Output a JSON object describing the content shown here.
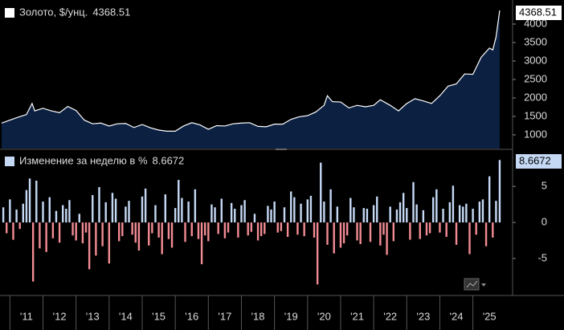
{
  "chart_data": [
    {
      "type": "area",
      "series": [
        {
          "name": "Золото, $/унц.",
          "color": "#ffffff",
          "fill": "#0c2142",
          "x": [
            2010.75,
            2011,
            2011.25,
            2011.5,
            2011.67,
            2011.75,
            2012,
            2012.25,
            2012.5,
            2012.75,
            2013,
            2013.25,
            2013.5,
            2013.75,
            2014,
            2014.25,
            2014.5,
            2014.75,
            2015,
            2015.25,
            2015.5,
            2015.75,
            2016,
            2016.25,
            2016.5,
            2016.75,
            2017,
            2017.25,
            2017.5,
            2017.75,
            2018,
            2018.25,
            2018.5,
            2018.75,
            2019,
            2019.25,
            2019.5,
            2019.75,
            2020,
            2020.25,
            2020.5,
            2020.6,
            2020.75,
            2021,
            2021.25,
            2021.5,
            2021.75,
            2022,
            2022.2,
            2022.5,
            2022.75,
            2023,
            2023.25,
            2023.5,
            2023.75,
            2024,
            2024.25,
            2024.5,
            2024.75,
            2025,
            2025.25,
            2025.5,
            2025.6,
            2025.7,
            2025.81
          ],
          "values": [
            1320,
            1400,
            1480,
            1550,
            1850,
            1650,
            1720,
            1650,
            1600,
            1770,
            1660,
            1400,
            1300,
            1320,
            1240,
            1300,
            1310,
            1200,
            1280,
            1190,
            1130,
            1100,
            1100,
            1240,
            1330,
            1270,
            1150,
            1250,
            1240,
            1300,
            1320,
            1330,
            1230,
            1220,
            1290,
            1290,
            1420,
            1490,
            1520,
            1620,
            1800,
            2060,
            1900,
            1890,
            1730,
            1800,
            1760,
            1800,
            1950,
            1800,
            1650,
            1850,
            1980,
            1920,
            1850,
            2060,
            2320,
            2380,
            2650,
            2640,
            3100,
            3350,
            3300,
            3650,
            4368.51
          ]
        }
      ],
      "xlim": [
        2010.7,
        2026.2
      ],
      "ylim": [
        630,
        4543
      ],
      "yticks": [
        1000,
        1500,
        2000,
        2500,
        3000,
        3500,
        4000
      ]
    },
    {
      "type": "bar",
      "series": [
        {
          "name": "Изменение за неделю в %",
          "color_pos": "#c5d9f5",
          "color_neg": "#f28b93",
          "x": [
            2010.8,
            2010.9,
            2011.0,
            2011.1,
            2011.2,
            2011.3,
            2011.4,
            2011.5,
            2011.6,
            2011.7,
            2011.8,
            2011.9,
            2012.0,
            2012.1,
            2012.2,
            2012.3,
            2012.4,
            2012.5,
            2012.6,
            2012.7,
            2012.8,
            2012.9,
            2013.0,
            2013.1,
            2013.2,
            2013.3,
            2013.4,
            2013.5,
            2013.6,
            2013.7,
            2013.8,
            2013.9,
            2014.0,
            2014.1,
            2014.2,
            2014.3,
            2014.4,
            2014.5,
            2014.6,
            2014.7,
            2014.8,
            2014.9,
            2015.0,
            2015.1,
            2015.2,
            2015.3,
            2015.4,
            2015.5,
            2015.6,
            2015.7,
            2015.8,
            2015.9,
            2016.0,
            2016.1,
            2016.2,
            2016.3,
            2016.4,
            2016.5,
            2016.6,
            2016.7,
            2016.8,
            2016.9,
            2017.0,
            2017.1,
            2017.2,
            2017.3,
            2017.4,
            2017.5,
            2017.6,
            2017.7,
            2017.8,
            2017.9,
            2018.0,
            2018.1,
            2018.2,
            2018.3,
            2018.4,
            2018.5,
            2018.6,
            2018.7,
            2018.8,
            2018.9,
            2019.0,
            2019.1,
            2019.2,
            2019.3,
            2019.4,
            2019.5,
            2019.6,
            2019.7,
            2019.8,
            2019.9,
            2020.0,
            2020.1,
            2020.2,
            2020.3,
            2020.4,
            2020.5,
            2020.6,
            2020.7,
            2020.8,
            2020.9,
            2021.0,
            2021.1,
            2021.2,
            2021.3,
            2021.4,
            2021.5,
            2021.6,
            2021.7,
            2021.8,
            2021.9,
            2022.0,
            2022.1,
            2022.2,
            2022.3,
            2022.4,
            2022.5,
            2022.6,
            2022.7,
            2022.8,
            2022.9,
            2023.0,
            2023.1,
            2023.2,
            2023.3,
            2023.4,
            2023.5,
            2023.6,
            2023.7,
            2023.8,
            2023.9,
            2024.0,
            2024.1,
            2024.2,
            2024.3,
            2024.4,
            2024.5,
            2024.6,
            2024.7,
            2024.8,
            2024.9,
            2025.0,
            2025.1,
            2025.2,
            2025.3,
            2025.4,
            2025.5,
            2025.6,
            2025.7,
            2025.81
          ],
          "values": [
            2.1,
            -1.5,
            3.2,
            -2.4,
            1.8,
            -0.9,
            2.6,
            4.5,
            6.1,
            -8.2,
            5.8,
            -3.6,
            2.9,
            -4.1,
            3.5,
            -2.2,
            1.6,
            -2.8,
            2.4,
            1.9,
            3.1,
            -1.8,
            -2.5,
            1.2,
            -2.9,
            -1.4,
            -6.5,
            3.8,
            -4.6,
            4.9,
            -3.3,
            2.8,
            -5.7,
            4.1,
            3.3,
            -2.6,
            -1.9,
            2.2,
            3.0,
            -1.7,
            -2.8,
            -3.9,
            3.6,
            4.7,
            -3.2,
            -1.5,
            2.4,
            -2.1,
            -4.4,
            3.9,
            -2.3,
            -3.5,
            2.0,
            5.9,
            3.4,
            -2.7,
            2.9,
            -1.9,
            4.6,
            -2.3,
            -5.8,
            -1.8,
            -2.6,
            2.5,
            2.1,
            -1.6,
            3.3,
            -2.2,
            -1.4,
            2.7,
            1.9,
            -2.1,
            2.4,
            3.1,
            -1.8,
            -1.3,
            1.2,
            -2.5,
            -1.9,
            -1.6,
            2.3,
            1.8,
            2.9,
            -1.4,
            -1.2,
            2.1,
            -2.0,
            4.3,
            3.5,
            -1.7,
            2.6,
            -1.9,
            3.2,
            3.7,
            -2.1,
            -8.6,
            8.3,
            2.9,
            -3.1,
            4.6,
            -4.3,
            2.2,
            -3.5,
            -2.9,
            -1.8,
            3.4,
            2.1,
            -2.5,
            -3.0,
            2.0,
            1.9,
            -2.7,
            2.4,
            3.6,
            -3.2,
            -1.7,
            -4.5,
            2.2,
            -2.6,
            1.8,
            2.8,
            4.1,
            2.0,
            -2.4,
            5.6,
            2.5,
            -2.3,
            1.7,
            -1.8,
            -1.5,
            3.5,
            4.6,
            -1.4,
            1.9,
            -2.0,
            2.8,
            5.1,
            -3.1,
            2.4,
            2.2,
            2.6,
            -4.4,
            1.9,
            -1.7,
            2.9,
            3.2,
            -3.3,
            6.4,
            -2.1,
            3.0,
            8.6672
          ]
        }
      ],
      "xlim": [
        2010.7,
        2026.2
      ],
      "ylim": [
        -9.8,
        9.7
      ],
      "yticks": [
        -5,
        0,
        5
      ],
      "xticks": [
        {
          "value": 2011,
          "label": "'11"
        },
        {
          "value": 2012,
          "label": "'12"
        },
        {
          "value": 2013,
          "label": "'13"
        },
        {
          "value": 2014,
          "label": "'14"
        },
        {
          "value": 2015,
          "label": "'15"
        },
        {
          "value": 2016,
          "label": "'16"
        },
        {
          "value": 2017,
          "label": "'17"
        },
        {
          "value": 2018,
          "label": "'18"
        },
        {
          "value": 2019,
          "label": "'19"
        },
        {
          "value": 2020,
          "label": "'20"
        },
        {
          "value": 2021,
          "label": "'21"
        },
        {
          "value": 2022,
          "label": "'22"
        },
        {
          "value": 2023,
          "label": "'23"
        },
        {
          "value": 2024,
          "label": "'24"
        },
        {
          "value": 2025,
          "label": "'25"
        }
      ]
    }
  ]
}
